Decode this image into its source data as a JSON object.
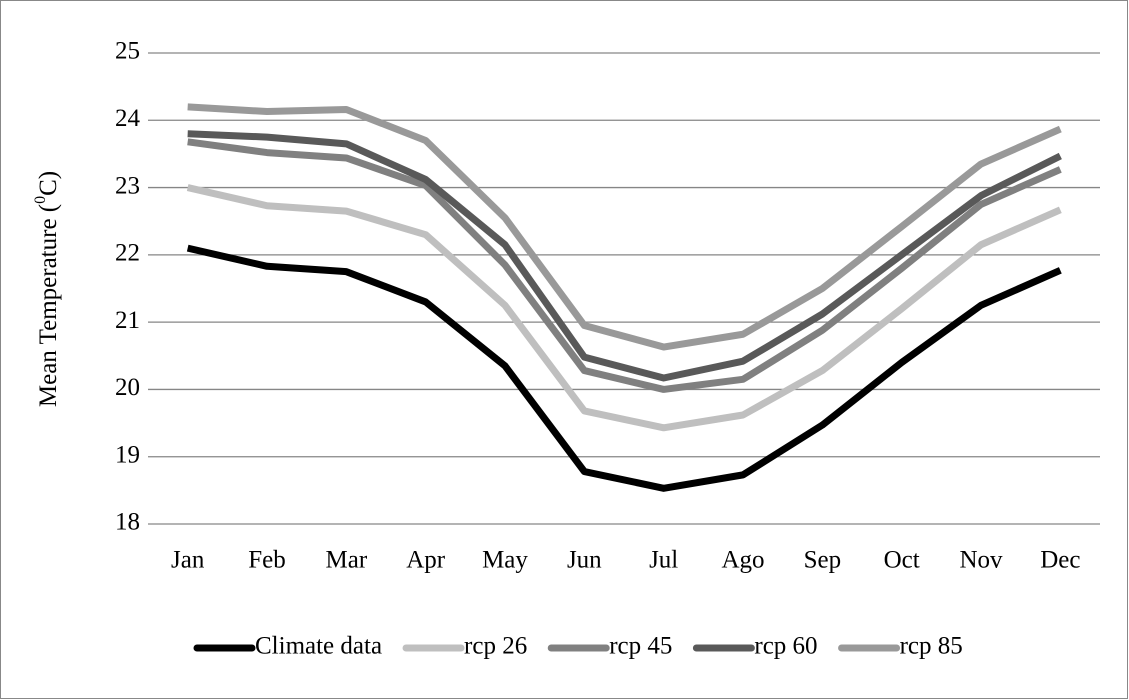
{
  "chart_data": {
    "type": "line",
    "y_label_parts": [
      "Mean Temperature (",
      "0",
      "C)"
    ],
    "categories": [
      "Jan",
      "Feb",
      "Mar",
      "Apr",
      "May",
      "Jun",
      "Jul",
      "Ago",
      "Sep",
      "Oct",
      "Nov",
      "Dec"
    ],
    "series": [
      {
        "name": "Climate data",
        "color": "#000000",
        "values": [
          22.1,
          21.83,
          21.75,
          21.3,
          20.35,
          18.78,
          18.53,
          18.73,
          19.47,
          20.4,
          21.25,
          21.77
        ]
      },
      {
        "name": "rcp 26",
        "color": "#bfbfbf",
        "values": [
          23.0,
          22.73,
          22.65,
          22.3,
          21.25,
          19.68,
          19.43,
          19.62,
          20.28,
          21.2,
          22.15,
          22.67
        ]
      },
      {
        "name": "rcp 45",
        "color": "#808080",
        "values": [
          23.68,
          23.52,
          23.44,
          23.03,
          21.85,
          20.28,
          20.0,
          20.15,
          20.88,
          21.8,
          22.75,
          23.27
        ]
      },
      {
        "name": "rcp 60",
        "color": "#595959",
        "values": [
          23.8,
          23.75,
          23.65,
          23.12,
          22.15,
          20.48,
          20.17,
          20.42,
          21.12,
          22.0,
          22.88,
          23.47
        ]
      },
      {
        "name": "rcp 85",
        "color": "#999999",
        "values": [
          24.2,
          24.13,
          24.16,
          23.7,
          22.55,
          20.95,
          20.63,
          20.82,
          21.5,
          22.42,
          23.35,
          23.87
        ]
      }
    ],
    "ylim": [
      18,
      25
    ],
    "yticks": [
      18,
      19,
      20,
      21,
      22,
      23,
      24,
      25
    ],
    "grid": true,
    "legend": "bottom"
  }
}
